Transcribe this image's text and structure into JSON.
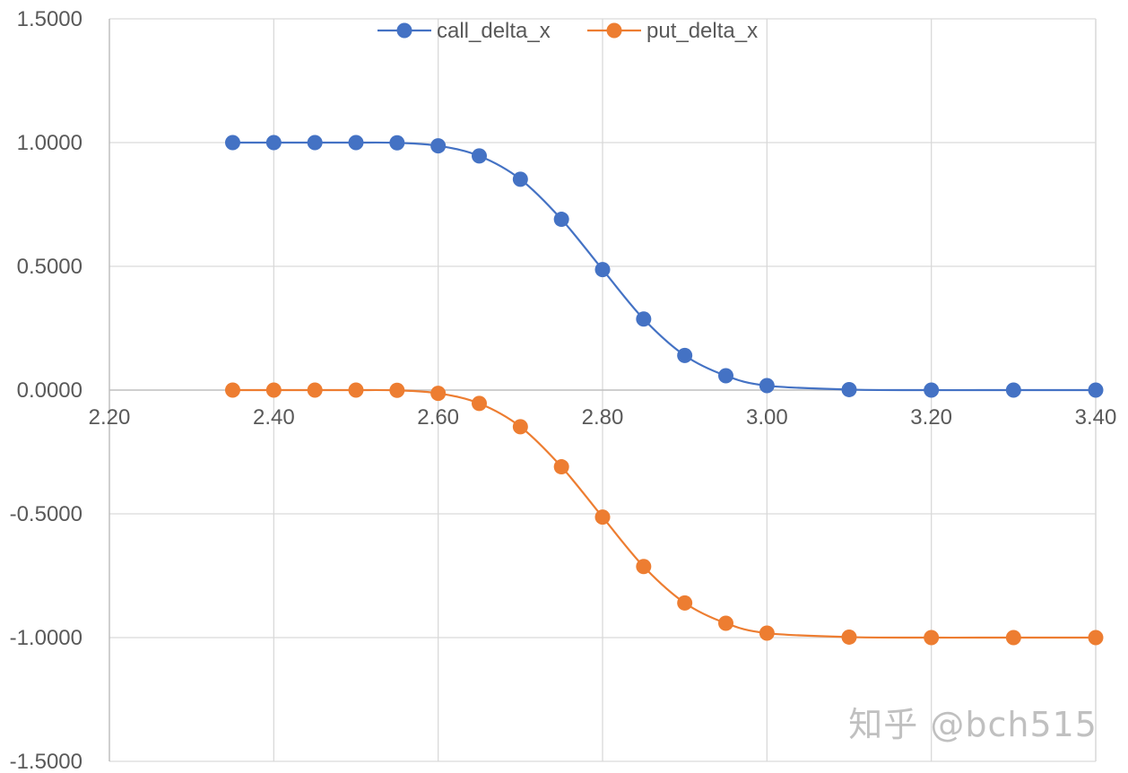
{
  "chart_data": {
    "type": "scatter",
    "title": "",
    "xlabel": "",
    "ylabel": "",
    "xlim": [
      2.2,
      3.4
    ],
    "ylim": [
      -1.5,
      1.5
    ],
    "x_ticks": [
      "2.20",
      "2.40",
      "2.60",
      "2.80",
      "3.00",
      "3.20",
      "3.40"
    ],
    "y_ticks": [
      "1.5000",
      "1.0000",
      "0.5000",
      "0.0000",
      "-0.5000",
      "-1.0000",
      "-1.5000"
    ],
    "grid": true,
    "legend_position": "top-center",
    "series": [
      {
        "name": "call_delta_x",
        "color": "#4472C4",
        "x": [
          2.35,
          2.4,
          2.45,
          2.5,
          2.55,
          2.6,
          2.65,
          2.7,
          2.75,
          2.8,
          2.85,
          2.9,
          2.95,
          3.0,
          3.1,
          3.2,
          3.3,
          3.4
        ],
        "y": [
          1.0,
          1.0,
          1.0,
          1.0,
          0.999,
          0.987,
          0.946,
          0.852,
          0.69,
          0.487,
          0.287,
          0.14,
          0.058,
          0.018,
          0.002,
          0.0,
          0.0,
          0.0
        ]
      },
      {
        "name": "put_delta_x",
        "color": "#ED7D31",
        "x": [
          2.35,
          2.4,
          2.45,
          2.5,
          2.55,
          2.6,
          2.65,
          2.7,
          2.75,
          2.8,
          2.85,
          2.9,
          2.95,
          3.0,
          3.1,
          3.2,
          3.3,
          3.4
        ],
        "y": [
          0.0,
          0.0,
          0.0,
          0.0,
          -0.001,
          -0.013,
          -0.054,
          -0.148,
          -0.31,
          -0.513,
          -0.713,
          -0.86,
          -0.942,
          -0.982,
          -0.998,
          -1.0,
          -1.0,
          -1.0
        ]
      }
    ]
  },
  "watermark": "知乎 @bch515"
}
